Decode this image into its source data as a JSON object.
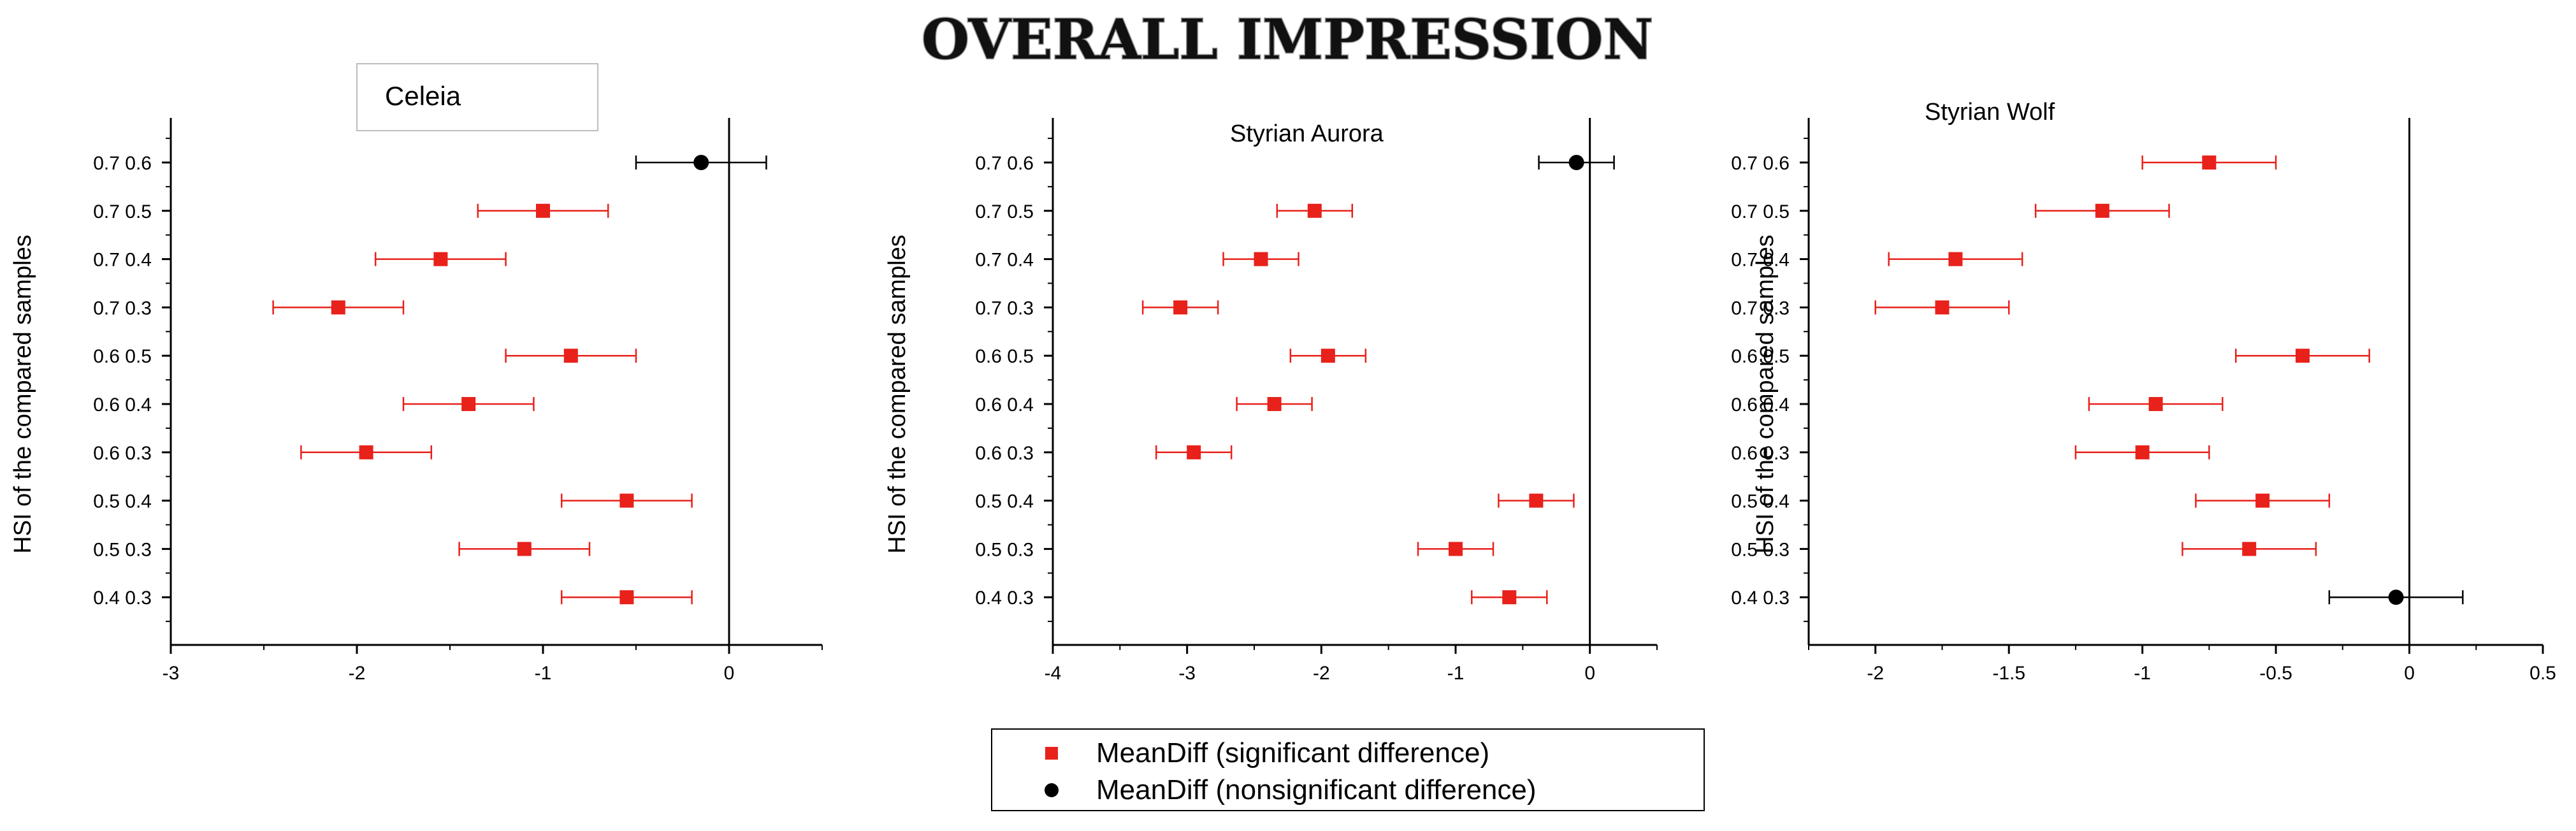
{
  "figure_title": "OVERALL IMPRESSION",
  "chart_data": [
    {
      "type": "scatter",
      "title": "Celeia",
      "xlabel": "",
      "ylabel": "HSI of the compared samples",
      "xlim": [
        -3,
        0.5
      ],
      "xticks": [
        -3,
        -2,
        -1,
        0
      ],
      "categories": [
        "0.7 0.6",
        "0.7 0.5",
        "0.7 0.4",
        "0.7 0.3",
        "0.6 0.5",
        "0.6 0.4",
        "0.6 0.3",
        "0.5 0.4",
        "0.5 0.3",
        "0.4 0.3"
      ],
      "mean_diff": [
        -0.15,
        -1.0,
        -1.55,
        -2.1,
        -0.85,
        -1.4,
        -1.95,
        -0.55,
        -1.1,
        -0.55
      ],
      "ci_low": [
        -0.5,
        -1.35,
        -1.9,
        -2.45,
        -1.2,
        -1.75,
        -2.3,
        -0.9,
        -1.45,
        -0.9
      ],
      "ci_high": [
        0.2,
        -0.65,
        -1.2,
        -1.75,
        -0.5,
        -1.05,
        -1.6,
        -0.2,
        -0.75,
        -0.2
      ],
      "significant": [
        false,
        true,
        true,
        true,
        true,
        true,
        true,
        true,
        true,
        true
      ],
      "reference_line": 0
    },
    {
      "type": "scatter",
      "title": "Styrian Aurora",
      "xlabel": "",
      "ylabel": "HSI of the compared samples",
      "xlim": [
        -4,
        0.5
      ],
      "xticks": [
        -4,
        -3,
        -2,
        -1,
        0
      ],
      "categories": [
        "0.7 0.6",
        "0.7 0.5",
        "0.7 0.4",
        "0.7 0.3",
        "0.6 0.5",
        "0.6 0.4",
        "0.6 0.3",
        "0.5 0.4",
        "0.5 0.3",
        "0.4 0.3"
      ],
      "mean_diff": [
        -0.1,
        -2.05,
        -2.45,
        -3.05,
        -1.95,
        -2.35,
        -2.95,
        -0.4,
        -1.0,
        -0.6
      ],
      "ci_low": [
        -0.38,
        -2.33,
        -2.73,
        -3.33,
        -2.23,
        -2.63,
        -3.23,
        -0.68,
        -1.28,
        -0.88
      ],
      "ci_high": [
        0.18,
        -1.77,
        -2.17,
        -2.77,
        -1.67,
        -2.07,
        -2.67,
        -0.12,
        -0.72,
        -0.32
      ],
      "significant": [
        false,
        true,
        true,
        true,
        true,
        true,
        true,
        true,
        true,
        true
      ],
      "reference_line": 0
    },
    {
      "type": "scatter",
      "title": "Styrian Wolf",
      "xlabel": "",
      "ylabel": "HSI of the compared samples",
      "xlim": [
        -2.25,
        0.5
      ],
      "xticks": [
        -2,
        -1.5,
        -1,
        -0.5,
        0,
        0.5
      ],
      "categories": [
        "0.7 0.6",
        "0.7 0.5",
        "0.7 0.4",
        "0.7 0.3",
        "0.6 0.5",
        "0.6 0.4",
        "0.6 0.3",
        "0.5 0.4",
        "0.5 0.3",
        "0.4 0.3"
      ],
      "mean_diff": [
        -0.75,
        -1.15,
        -1.7,
        -1.75,
        -0.4,
        -0.95,
        -1.0,
        -0.55,
        -0.6,
        -0.05
      ],
      "ci_low": [
        -1.0,
        -1.4,
        -1.95,
        -2.0,
        -0.65,
        -1.2,
        -1.25,
        -0.8,
        -0.85,
        -0.3
      ],
      "ci_high": [
        -0.5,
        -0.9,
        -1.45,
        -1.5,
        -0.15,
        -0.7,
        -0.75,
        -0.3,
        -0.35,
        0.2
      ],
      "significant": [
        true,
        true,
        true,
        true,
        true,
        true,
        true,
        true,
        true,
        false
      ],
      "reference_line": 0
    }
  ],
  "legend": {
    "items": [
      {
        "label": "MeanDiff (significant difference)",
        "color": "#e8211b",
        "marker": "square"
      },
      {
        "label": "MeanDiff (nonsignificant difference)",
        "color": "#000000",
        "marker": "circle"
      }
    ]
  },
  "colors": {
    "significant": "#e8211b",
    "nonsignificant": "#000000",
    "axis": "#000000"
  }
}
